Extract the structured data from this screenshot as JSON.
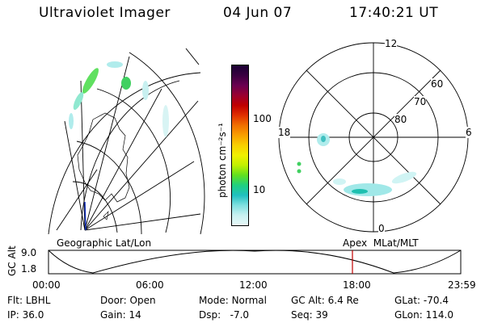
{
  "header": {
    "instrument": "Ultraviolet Imager",
    "date": "04 Jun 07",
    "time": "17:40:21 UT"
  },
  "left_panel": {
    "caption": "Geographic Lat/Lon"
  },
  "right_panel": {
    "caption": "Apex  MLat/MLT",
    "mlt_labels": {
      "top": "12",
      "left": "18",
      "right": "6",
      "bottom": "0"
    },
    "lat_labels": [
      "60",
      "70",
      "80"
    ]
  },
  "colorbar": {
    "unit_label": "photon cm⁻²s⁻¹",
    "ticks": [
      "100",
      "10"
    ],
    "colors": [
      "#1a0033",
      "#3a0040",
      "#6a0050",
      "#9a0030",
      "#c00000",
      "#e03000",
      "#f07000",
      "#f8a000",
      "#f8d000",
      "#f0f000",
      "#c0f000",
      "#60e020",
      "#20d080",
      "#20c0c0",
      "#80e0e0",
      "#c8f0f0",
      "#e8f8f8"
    ]
  },
  "altitude_strip": {
    "axis_label": "GC Alt",
    "y_ticks": [
      "9.0",
      "1.8"
    ],
    "x_ticks": [
      "00:00",
      "06:00",
      "12:00",
      "18:00",
      "23:59"
    ],
    "marker_color": "#c00000"
  },
  "status": {
    "row1": [
      {
        "label": "Flt:",
        "value": "LBHL"
      },
      {
        "label": "Door:",
        "value": "Open"
      },
      {
        "label": "Mode:",
        "value": "Normal"
      },
      {
        "label": "GC Alt:",
        "value": "6.4 Re"
      },
      {
        "label": "GLat:",
        "value": "-70.4"
      }
    ],
    "row2": [
      {
        "label": "IP:",
        "value": "36.0"
      },
      {
        "label": "Gain:",
        "value": "14"
      },
      {
        "label": "Dsp:",
        "value": "  -7.0"
      },
      {
        "label": "Seq:",
        "value": "39"
      },
      {
        "label": "GLon:",
        "value": "114.0"
      }
    ]
  }
}
